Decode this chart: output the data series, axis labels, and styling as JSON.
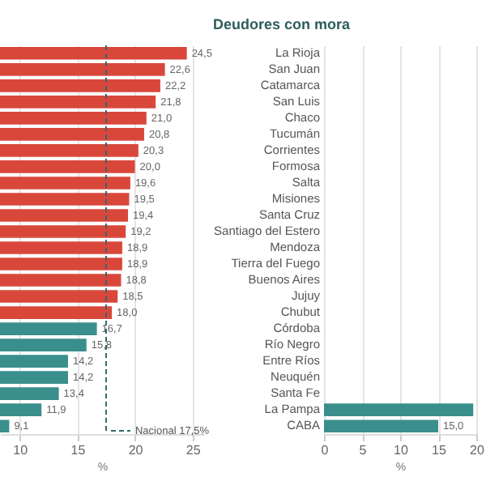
{
  "chart_data": [
    {
      "type": "bar",
      "orientation": "horizontal",
      "xlabel": "%",
      "categories": [
        null,
        null,
        null,
        null,
        null,
        null,
        null,
        null,
        null,
        null,
        null,
        null,
        null,
        null,
        null,
        null,
        null,
        null,
        null,
        null,
        null,
        null,
        null,
        null
      ],
      "values": [
        24.5,
        22.6,
        22.2,
        21.8,
        21.0,
        20.8,
        20.3,
        20.0,
        19.6,
        19.5,
        19.4,
        19.2,
        18.9,
        18.9,
        18.8,
        18.5,
        18.0,
        16.7,
        15.8,
        14.2,
        14.2,
        13.4,
        11.9,
        9.1
      ],
      "value_labels": [
        "24,5",
        "22,6",
        "22,2",
        "21,8",
        "21,0",
        "20,8",
        "20,3",
        "20,0",
        "19,6",
        "19,5",
        "19,4",
        "19,2",
        "18,9",
        "18,9",
        "18,8",
        "18,5",
        "18,0",
        "16,7",
        "15,8",
        "14,2",
        "14,2",
        "13,4",
        "11,9",
        "9,1"
      ],
      "colors": [
        "#d9473b",
        "#d9473b",
        "#d9473b",
        "#d9473b",
        "#d9473b",
        "#d9473b",
        "#d9473b",
        "#d9473b",
        "#d9473b",
        "#d9473b",
        "#d9473b",
        "#d9473b",
        "#d9473b",
        "#d9473b",
        "#d9473b",
        "#d9473b",
        "#d9473b",
        "#3a8f8c",
        "#3a8f8c",
        "#3a8f8c",
        "#3a8f8c",
        "#3a8f8c",
        "#3a8f8c",
        "#3a8f8c"
      ],
      "xlim": [
        8.3,
        26
      ],
      "xticks": [
        10,
        15,
        20,
        25
      ],
      "grid": "x",
      "ref_lines": [
        {
          "axis": "x",
          "value": 17.5,
          "label": "Nacional 17,5%",
          "line_style": "dashed",
          "color": "#2e6b6a"
        }
      ]
    },
    {
      "type": "bar",
      "orientation": "horizontal",
      "title": "Deudores con mora",
      "xlabel": "%",
      "categories": [
        "La Rioja",
        "San Juan",
        "Catamarca",
        "San Luis",
        "Chaco",
        "Tucumán",
        "Corrientes",
        "Formosa",
        "Salta",
        "Misiones",
        "Santa Cruz",
        "Santiago del Estero",
        "Mendoza",
        "Tierra del Fuego",
        "Buenos Aires",
        "Jujuy",
        "Chubut",
        "Córdoba",
        "Río Negro",
        "Entre Ríos",
        "Neuquén",
        "Santa Fe",
        "La Pampa",
        "CABA"
      ],
      "values": [
        null,
        null,
        null,
        null,
        null,
        null,
        null,
        null,
        null,
        null,
        null,
        null,
        null,
        null,
        null,
        null,
        null,
        null,
        null,
        null,
        null,
        null,
        19.6,
        15.0
      ],
      "value_labels": [
        null,
        null,
        null,
        null,
        null,
        null,
        null,
        null,
        null,
        null,
        null,
        null,
        null,
        null,
        null,
        null,
        null,
        null,
        null,
        null,
        null,
        null,
        null,
        "15,0"
      ],
      "colors": [
        "#d9473b",
        "#d9473b",
        "#d9473b",
        "#d9473b",
        "#d9473b",
        "#d9473b",
        "#d9473b",
        "#d9473b",
        "#d9473b",
        "#d9473b",
        "#d9473b",
        "#d9473b",
        "#d9473b",
        "#d9473b",
        "#d9473b",
        "#d9473b",
        "#3a8f8c",
        "#3a8f8c",
        "#3a8f8c",
        "#3a8f8c",
        "#3a8f8c",
        "#3a8f8c",
        "#3a8f8c",
        "#3a8f8c"
      ],
      "xlim": [
        0,
        20
      ],
      "xticks": [
        0,
        5,
        10,
        15,
        20
      ],
      "grid": "x"
    }
  ]
}
